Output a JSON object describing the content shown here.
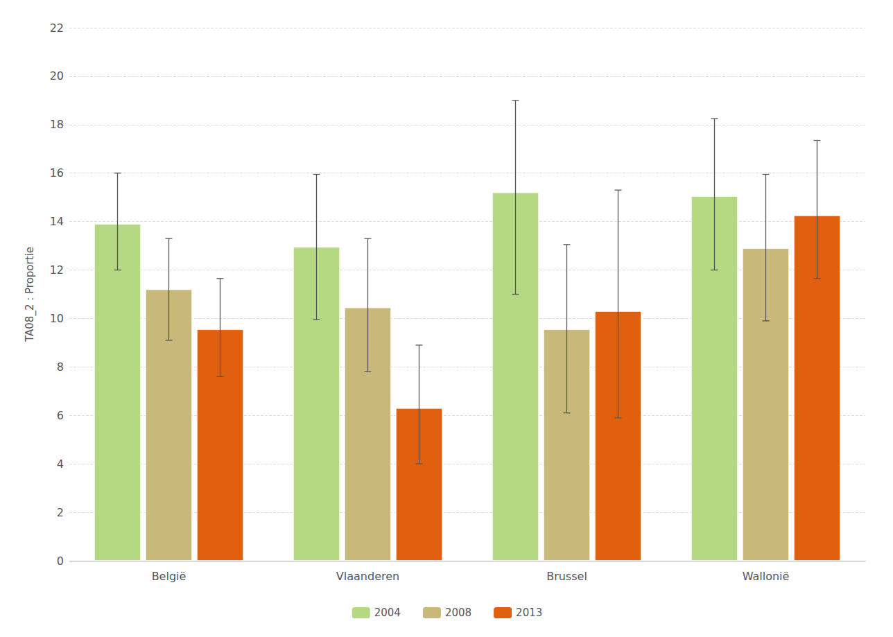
{
  "chart_data": {
    "type": "bar",
    "categories": [
      "België",
      "Vlaanderen",
      "Brussel",
      "Wallonië"
    ],
    "series": [
      {
        "name": "2004",
        "color": "#b5d882",
        "values": [
          13.9,
          12.95,
          15.2,
          15.05
        ],
        "errors_low": [
          1.9,
          3.0,
          4.2,
          3.05
        ],
        "errors_high": [
          2.1,
          3.0,
          3.8,
          3.2
        ]
      },
      {
        "name": "2008",
        "color": "#c8b87a",
        "values": [
          11.2,
          10.45,
          9.55,
          12.9
        ],
        "errors_low": [
          2.1,
          2.65,
          3.45,
          3.0
        ],
        "errors_high": [
          2.1,
          2.85,
          3.5,
          3.05
        ]
      },
      {
        "name": "2013",
        "color": "#e06010",
        "values": [
          9.55,
          6.3,
          10.3,
          14.25
        ],
        "errors_low": [
          1.95,
          2.3,
          4.4,
          2.6
        ],
        "errors_high": [
          2.1,
          2.6,
          5.0,
          3.1
        ]
      }
    ],
    "ylabel": "TA08_2 : Proportie",
    "ylim": [
      0,
      22
    ],
    "yticks": [
      0,
      2,
      4,
      6,
      8,
      10,
      12,
      14,
      16,
      18,
      20,
      22
    ],
    "grid": true,
    "legend": "bottom"
  }
}
